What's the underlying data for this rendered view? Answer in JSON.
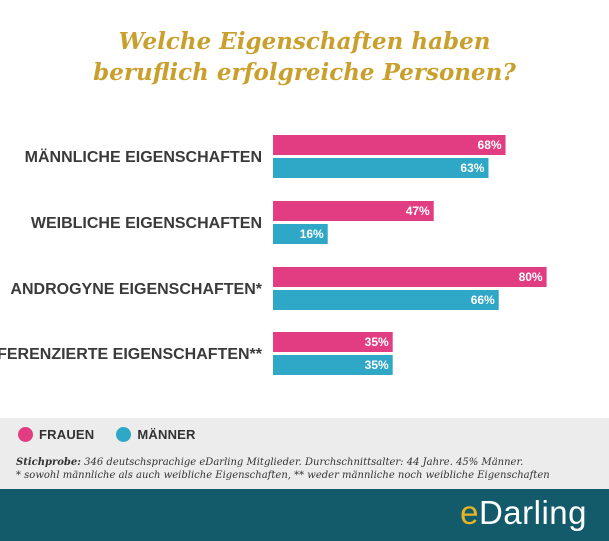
{
  "title": {
    "line1": "Welche Eigenschaften haben",
    "line2": "beruflich erfolgreiche Personen?"
  },
  "legend": {
    "frauen": "FRAUEN",
    "maenner": "MÄNNER"
  },
  "notes": {
    "sample_label": "Stichprobe:",
    "sample_text": " 346 deutschsprachige eDarling Mitglieder. Durchschnittsalter: 44 Jahre. 45% Männer.",
    "footnote": "* sowohl männliche als auch weibliche Eigenschaften, ** weder männliche noch weibliche Eigenschaften"
  },
  "brand": {
    "prefix": "e",
    "name": "Darling"
  },
  "colors": {
    "frauen": "#e23d82",
    "maenner": "#2fa7c6",
    "title": "#c9a02e",
    "footer": "#135b6b"
  },
  "chart_data": {
    "type": "bar",
    "orientation": "horizontal",
    "categories": [
      "MÄNNLICHE EIGENSCHAFTEN",
      "WEIBLICHE EIGENSCHAFTEN",
      "ANDROGYNE EIGENSCHAFTEN*",
      "UNDIFFERENZIERTE EIGENSCHAFTEN**"
    ],
    "series": [
      {
        "name": "FRAUEN",
        "values": [
          68,
          47,
          80,
          35
        ],
        "color": "#e23d82"
      },
      {
        "name": "MÄNNER",
        "values": [
          63,
          16,
          66,
          35
        ],
        "color": "#2fa7c6"
      }
    ],
    "unit": "%",
    "xlim": [
      0,
      100
    ],
    "grid": false,
    "legend_position": "bottom-left"
  }
}
